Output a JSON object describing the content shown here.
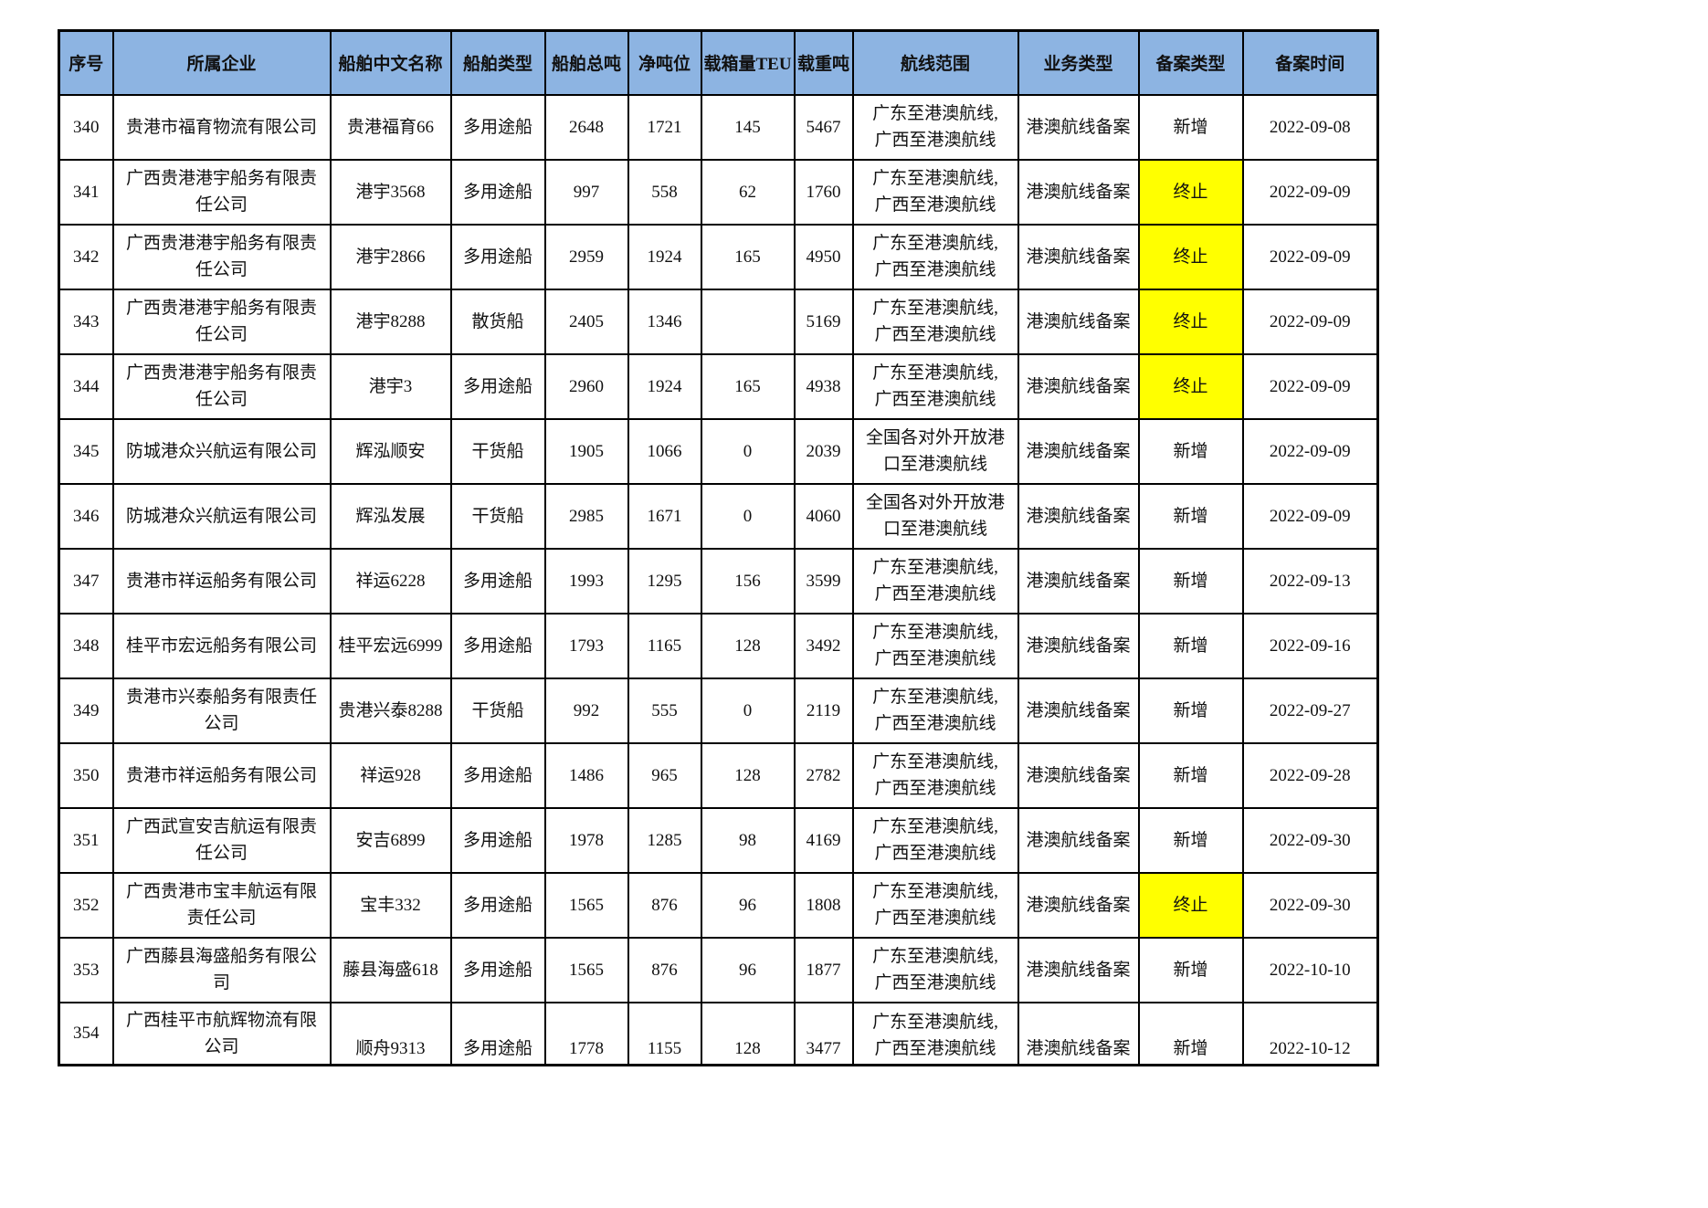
{
  "colors": {
    "header_bg": "#8DB4E2",
    "terminated_highlight": "#FFFF00",
    "border": "#000000",
    "text": "#111111",
    "page_bg": "#FFFFFF"
  },
  "table": {
    "columns": [
      {
        "key": "seq",
        "label": "序号"
      },
      {
        "key": "company",
        "label": "所属企业"
      },
      {
        "key": "ship-name",
        "label": "船舶中文名称"
      },
      {
        "key": "ship-type",
        "label": "船舶类型"
      },
      {
        "key": "gross-tonnage",
        "label": "船舶总吨"
      },
      {
        "key": "net-tonnage",
        "label": "净吨位"
      },
      {
        "key": "teu",
        "label": "载箱量TEU"
      },
      {
        "key": "deadweight",
        "label": "载重吨"
      },
      {
        "key": "route",
        "label": "航线范围"
      },
      {
        "key": "business-type",
        "label": "业务类型"
      },
      {
        "key": "filing-type",
        "label": "备案类型"
      },
      {
        "key": "filing-date",
        "label": "备案时间"
      }
    ],
    "field_order": [
      "seq",
      "company",
      "ship_name",
      "ship_type",
      "gross_tonnage",
      "net_tonnage",
      "teu",
      "deadweight",
      "route",
      "business_type",
      "filing_type",
      "filing_date"
    ],
    "rows": [
      {
        "seq": "340",
        "company": "贵港市福育物流有限公司",
        "ship_name": "贵港福育66",
        "ship_type": "多用途船",
        "gross_tonnage": "2648",
        "net_tonnage": "1721",
        "teu": "145",
        "deadweight": "5467",
        "route": "广东至港澳航线,\n广西至港澳航线",
        "business_type": "港澳航线备案",
        "filing_type": "新增",
        "filing_date": "2022-09-08",
        "filing_type_highlight": false
      },
      {
        "seq": "341",
        "company": "广西贵港港宇船务有限责任公司",
        "ship_name": "港宇3568",
        "ship_type": "多用途船",
        "gross_tonnage": "997",
        "net_tonnage": "558",
        "teu": "62",
        "deadweight": "1760",
        "route": "广东至港澳航线,\n广西至港澳航线",
        "business_type": "港澳航线备案",
        "filing_type": "终止",
        "filing_date": "2022-09-09",
        "filing_type_highlight": true
      },
      {
        "seq": "342",
        "company": "广西贵港港宇船务有限责任公司",
        "ship_name": "港宇2866",
        "ship_type": "多用途船",
        "gross_tonnage": "2959",
        "net_tonnage": "1924",
        "teu": "165",
        "deadweight": "4950",
        "route": "广东至港澳航线,\n广西至港澳航线",
        "business_type": "港澳航线备案",
        "filing_type": "终止",
        "filing_date": "2022-09-09",
        "filing_type_highlight": true
      },
      {
        "seq": "343",
        "company": "广西贵港港宇船务有限责任公司",
        "ship_name": "港宇8288",
        "ship_type": "散货船",
        "gross_tonnage": "2405",
        "net_tonnage": "1346",
        "teu": "",
        "deadweight": "5169",
        "route": "广东至港澳航线,\n广西至港澳航线",
        "business_type": "港澳航线备案",
        "filing_type": "终止",
        "filing_date": "2022-09-09",
        "filing_type_highlight": true
      },
      {
        "seq": "344",
        "company": "广西贵港港宇船务有限责任公司",
        "ship_name": "港宇3",
        "ship_type": "多用途船",
        "gross_tonnage": "2960",
        "net_tonnage": "1924",
        "teu": "165",
        "deadweight": "4938",
        "route": "广东至港澳航线,\n广西至港澳航线",
        "business_type": "港澳航线备案",
        "filing_type": "终止",
        "filing_date": "2022-09-09",
        "filing_type_highlight": true
      },
      {
        "seq": "345",
        "company": "防城港众兴航运有限公司",
        "ship_name": "辉泓顺安",
        "ship_type": "干货船",
        "gross_tonnage": "1905",
        "net_tonnage": "1066",
        "teu": "0",
        "deadweight": "2039",
        "route": "全国各对外开放港口至港澳航线",
        "business_type": "港澳航线备案",
        "filing_type": "新增",
        "filing_date": "2022-09-09",
        "filing_type_highlight": false
      },
      {
        "seq": "346",
        "company": "防城港众兴航运有限公司",
        "ship_name": "辉泓发展",
        "ship_type": "干货船",
        "gross_tonnage": "2985",
        "net_tonnage": "1671",
        "teu": "0",
        "deadweight": "4060",
        "route": "全国各对外开放港口至港澳航线",
        "business_type": "港澳航线备案",
        "filing_type": "新增",
        "filing_date": "2022-09-09",
        "filing_type_highlight": false
      },
      {
        "seq": "347",
        "company": "贵港市祥运船务有限公司",
        "ship_name": "祥运6228",
        "ship_type": "多用途船",
        "gross_tonnage": "1993",
        "net_tonnage": "1295",
        "teu": "156",
        "deadweight": "3599",
        "route": "广东至港澳航线,\n广西至港澳航线",
        "business_type": "港澳航线备案",
        "filing_type": "新增",
        "filing_date": "2022-09-13",
        "filing_type_highlight": false
      },
      {
        "seq": "348",
        "company": "桂平市宏远船务有限公司",
        "ship_name": "桂平宏远6999",
        "ship_type": "多用途船",
        "gross_tonnage": "1793",
        "net_tonnage": "1165",
        "teu": "128",
        "deadweight": "3492",
        "route": "广东至港澳航线,\n广西至港澳航线",
        "business_type": "港澳航线备案",
        "filing_type": "新增",
        "filing_date": "2022-09-16",
        "filing_type_highlight": false
      },
      {
        "seq": "349",
        "company": "贵港市兴泰船务有限责任公司",
        "ship_name": "贵港兴泰8288",
        "ship_type": "干货船",
        "gross_tonnage": "992",
        "net_tonnage": "555",
        "teu": "0",
        "deadweight": "2119",
        "route": "广东至港澳航线,\n广西至港澳航线",
        "business_type": "港澳航线备案",
        "filing_type": "新增",
        "filing_date": "2022-09-27",
        "filing_type_highlight": false
      },
      {
        "seq": "350",
        "company": "贵港市祥运船务有限公司",
        "ship_name": "祥运928",
        "ship_type": "多用途船",
        "gross_tonnage": "1486",
        "net_tonnage": "965",
        "teu": "128",
        "deadweight": "2782",
        "route": "广东至港澳航线,\n广西至港澳航线",
        "business_type": "港澳航线备案",
        "filing_type": "新增",
        "filing_date": "2022-09-28",
        "filing_type_highlight": false
      },
      {
        "seq": "351",
        "company": "广西武宣安吉航运有限责任公司",
        "ship_name": "安吉6899",
        "ship_type": "多用途船",
        "gross_tonnage": "1978",
        "net_tonnage": "1285",
        "teu": "98",
        "deadweight": "4169",
        "route": "广东至港澳航线,\n广西至港澳航线",
        "business_type": "港澳航线备案",
        "filing_type": "新增",
        "filing_date": "2022-09-30",
        "filing_type_highlight": false
      },
      {
        "seq": "352",
        "company": "广西贵港市宝丰航运有限责任公司",
        "ship_name": "宝丰332",
        "ship_type": "多用途船",
        "gross_tonnage": "1565",
        "net_tonnage": "876",
        "teu": "96",
        "deadweight": "1808",
        "route": "广东至港澳航线,\n广西至港澳航线",
        "business_type": "港澳航线备案",
        "filing_type": "终止",
        "filing_date": "2022-09-30",
        "filing_type_highlight": true
      },
      {
        "seq": "353",
        "company": "广西藤县海盛船务有限公司",
        "ship_name": "藤县海盛618",
        "ship_type": "多用途船",
        "gross_tonnage": "1565",
        "net_tonnage": "876",
        "teu": "96",
        "deadweight": "1877",
        "route": "广东至港澳航线,\n广西至港澳航线",
        "business_type": "港澳航线备案",
        "filing_type": "新增",
        "filing_date": "2022-10-10",
        "filing_type_highlight": false
      },
      {
        "seq": "354",
        "company": "广西桂平市航辉物流有限公司",
        "ship_name": "顺舟9313",
        "ship_type": "多用途船",
        "gross_tonnage": "1778",
        "net_tonnage": "1155",
        "teu": "128",
        "deadweight": "3477",
        "route": "广东至港澳航线,\n广西至港澳航线",
        "business_type": "港澳航线备案",
        "filing_type": "新增",
        "filing_date": "2022-10-12",
        "filing_type_highlight": false,
        "cutoff": true
      }
    ]
  }
}
